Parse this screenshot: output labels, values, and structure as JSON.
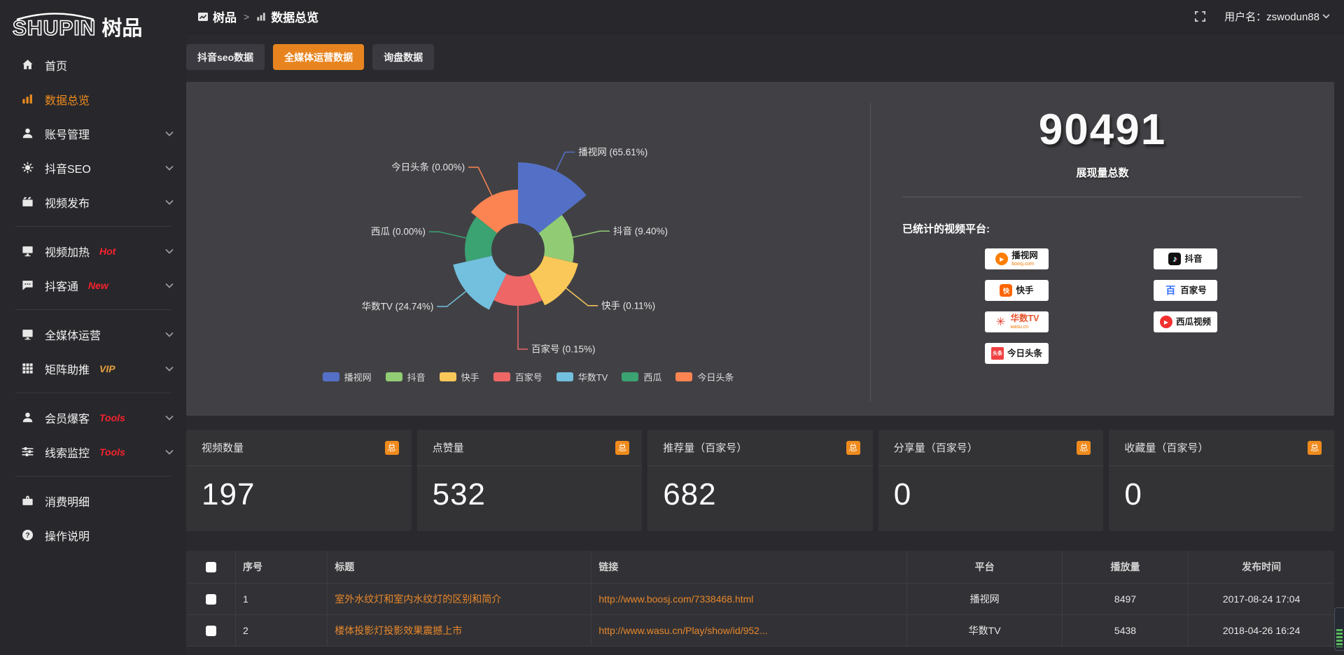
{
  "logo": {
    "en": "SHUPIN",
    "cn": "树品"
  },
  "topbar": {
    "breadcrumb": {
      "root": "树品",
      "separator": ">",
      "current": "数据总览"
    },
    "username": "用户名：zswodun88"
  },
  "sidebar": {
    "items": [
      {
        "label": "首页",
        "icon": "home-icon",
        "chevron": false,
        "active": false,
        "divider_after": false
      },
      {
        "label": "数据总览",
        "icon": "bar-chart-icon",
        "chevron": false,
        "active": true,
        "divider_after": false
      },
      {
        "label": "账号管理",
        "icon": "user-icon",
        "chevron": true,
        "active": false,
        "divider_after": false
      },
      {
        "label": "抖音SEO",
        "icon": "gear-icon",
        "chevron": true,
        "active": false,
        "divider_after": false
      },
      {
        "label": "视频发布",
        "icon": "video-icon",
        "chevron": true,
        "active": false,
        "divider_after": true
      },
      {
        "label": "视频加热",
        "icon": "monitor-icon",
        "badge": "Hot",
        "badge_color": "#f5222d",
        "chevron": true,
        "active": false,
        "divider_after": false
      },
      {
        "label": "抖客通",
        "icon": "chat-icon",
        "badge": "New",
        "badge_color": "#f5222d",
        "chevron": true,
        "active": false,
        "divider_after": true
      },
      {
        "label": "全媒体运营",
        "icon": "screen-icon",
        "chevron": true,
        "active": false,
        "divider_after": false
      },
      {
        "label": "矩阵助推",
        "icon": "grid-icon",
        "badge": "VIP",
        "badge_color": "#e6a23c",
        "chevron": true,
        "active": false,
        "divider_after": true
      },
      {
        "label": "会员爆客",
        "icon": "member-icon",
        "badge": "Tools",
        "badge_color": "#f5222d",
        "chevron": true,
        "active": false,
        "divider_after": false
      },
      {
        "label": "线索监控",
        "icon": "sliders-icon",
        "badge": "Tools",
        "badge_color": "#f5222d",
        "chevron": true,
        "active": false,
        "divider_after": true
      },
      {
        "label": "消费明细",
        "icon": "wallet-icon",
        "chevron": false,
        "active": false,
        "divider_after": false
      },
      {
        "label": "操作说明",
        "icon": "help-icon",
        "chevron": false,
        "active": false,
        "divider_after": false
      }
    ]
  },
  "tabs": [
    {
      "label": "抖音seo数据",
      "active": false
    },
    {
      "label": "全媒体运营数据",
      "active": true
    },
    {
      "label": "询盘数据",
      "active": false
    }
  ],
  "chart_data": {
    "type": "pie",
    "subtype": "nightingale-rose-donut",
    "legend_position": "bottom",
    "series": [
      {
        "name": "播视网",
        "percent": 65.61,
        "color": "#5470c6"
      },
      {
        "name": "抖音",
        "percent": 9.4,
        "color": "#91cc75"
      },
      {
        "name": "快手",
        "percent": 0.11,
        "color": "#fac858"
      },
      {
        "name": "百家号",
        "percent": 0.15,
        "color": "#ee6666"
      },
      {
        "name": "华数TV",
        "percent": 24.74,
        "color": "#73c0de"
      },
      {
        "name": "西瓜",
        "percent": 0.0,
        "color": "#3ba272"
      },
      {
        "name": "今日头条",
        "percent": 0.0,
        "color": "#fc8452"
      }
    ]
  },
  "summary": {
    "total_value": "90491",
    "total_label": "展现量总数",
    "platforms_label": "已统计的视频平台:",
    "platforms": [
      {
        "name": "播视网",
        "sub": "boosj.com",
        "logo": "boosj"
      },
      {
        "name": "快手",
        "logo": "kuaishou"
      },
      {
        "name": "华数TV",
        "sub": "wasu.cn",
        "logo": "wasu"
      },
      {
        "name": "今日头条",
        "logo": "toutiao"
      },
      {
        "name": "抖音",
        "logo": "douyin"
      },
      {
        "name": "百家号",
        "logo": "baijia"
      },
      {
        "name": "西瓜视频",
        "logo": "xigua"
      }
    ]
  },
  "stat_cards": [
    {
      "label": "视频数量",
      "badge": "总",
      "value": "197"
    },
    {
      "label": "点赞量",
      "badge": "总",
      "value": "532"
    },
    {
      "label": "推荐量（百家号）",
      "badge": "总",
      "value": "682"
    },
    {
      "label": "分享量（百家号）",
      "badge": "总",
      "value": "0"
    },
    {
      "label": "收藏量（百家号）",
      "badge": "总",
      "value": "0"
    }
  ],
  "table": {
    "headers": [
      "",
      "序号",
      "标题",
      "链接",
      "平台",
      "播放量",
      "发布时间"
    ],
    "rows": [
      {
        "index": "1",
        "title": "室外水纹灯和室内水纹灯的区别和简介",
        "link": "http://www.boosj.com/7338468.html",
        "platform": "播视网",
        "views": "8497",
        "time": "2017-08-24 17:04"
      },
      {
        "index": "2",
        "title": "楼体投影灯投影效果震撼上市",
        "link": "http://www.wasu.cn/Play/show/id/952...",
        "platform": "华数TV",
        "views": "5438",
        "time": "2018-04-26 16:24"
      }
    ]
  }
}
